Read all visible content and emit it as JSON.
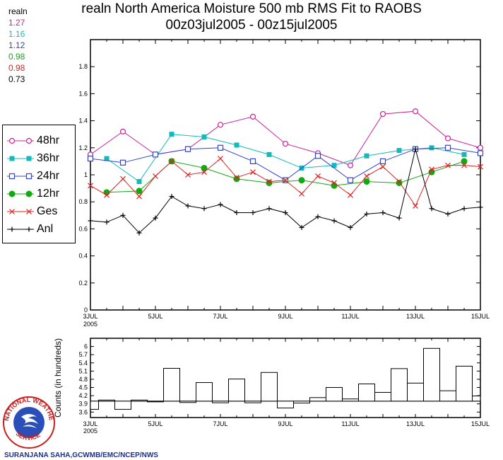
{
  "title_line1": "realn North America Moisture 500 mb RMS Fit to RAOBS",
  "title_line2": "00z03jul2005 - 00z15jul2005",
  "averages": {
    "label": "realn",
    "items": [
      {
        "value": "1.27",
        "color": "#cc2299"
      },
      {
        "value": "1.16",
        "color": "#11bbbb"
      },
      {
        "value": "1.12",
        "color": "#3344cc"
      },
      {
        "value": "0.98",
        "color": "#11aa11"
      },
      {
        "value": "0.98",
        "color": "#dd2222"
      },
      {
        "value": "0.73",
        "color": "#000000"
      }
    ]
  },
  "legend": [
    {
      "label": "48hr",
      "color": "#cc2299",
      "marker": "circle-open"
    },
    {
      "label": "36hr",
      "color": "#11bbbb",
      "marker": "square-filled"
    },
    {
      "label": "24hr",
      "color": "#3344cc",
      "marker": "square-open"
    },
    {
      "label": "12hr",
      "color": "#11aa11",
      "marker": "circle-filled"
    },
    {
      "label": "Ges",
      "color": "#dd2222",
      "marker": "x"
    },
    {
      "label": "Anl",
      "color": "#000000",
      "marker": "plus"
    }
  ],
  "chart_data": [
    {
      "type": "line",
      "x_unit": "day of July 2005",
      "xlim": [
        3,
        15
      ],
      "ylim": [
        0,
        2
      ],
      "y_ticks": [
        0,
        0.2,
        0.4,
        0.6,
        0.8,
        1,
        1.2,
        1.4,
        1.6,
        1.8
      ],
      "x_ticks": [
        {
          "x": 3,
          "label": "3JUL",
          "sub": "2005"
        },
        {
          "x": 5,
          "label": "5JUL"
        },
        {
          "x": 7,
          "label": "7JUL"
        },
        {
          "x": 9,
          "label": "9JUL"
        },
        {
          "x": 11,
          "label": "11JUL"
        },
        {
          "x": 13,
          "label": "13JUL"
        },
        {
          "x": 15,
          "label": "15JUL"
        }
      ],
      "series": [
        {
          "name": "48hr",
          "color": "#cc2299",
          "marker": "circle-open",
          "points": [
            [
              3,
              1.15
            ],
            [
              4,
              1.32
            ],
            [
              5,
              1.15
            ],
            [
              6,
              1.19
            ],
            [
              7,
              1.37
            ],
            [
              8,
              1.43
            ],
            [
              9,
              1.23
            ],
            [
              10,
              1.16
            ],
            [
              11,
              1.07
            ],
            [
              12,
              1.45
            ],
            [
              13,
              1.47
            ],
            [
              14,
              1.27
            ],
            [
              15,
              1.2
            ]
          ]
        },
        {
          "name": "36hr",
          "color": "#11bbbb",
          "marker": "square-filled",
          "points": [
            [
              3.5,
              1.12
            ],
            [
              4.5,
              0.95
            ],
            [
              5.5,
              1.3
            ],
            [
              6.5,
              1.28
            ],
            [
              7.5,
              1.22
            ],
            [
              8.5,
              1.15
            ],
            [
              9.5,
              1.05
            ],
            [
              10.5,
              1.07
            ],
            [
              11.5,
              1.14
            ],
            [
              12.5,
              1.18
            ],
            [
              13.5,
              1.2
            ],
            [
              14.5,
              1.15
            ]
          ]
        },
        {
          "name": "24hr",
          "color": "#3344cc",
          "marker": "square-open",
          "points": [
            [
              3,
              1.12
            ],
            [
              4,
              1.09
            ],
            [
              5,
              1.15
            ],
            [
              6,
              1.19
            ],
            [
              7,
              1.2
            ],
            [
              8,
              1.1
            ],
            [
              9,
              0.96
            ],
            [
              10,
              1.14
            ],
            [
              11,
              0.96
            ],
            [
              12,
              1.1
            ],
            [
              13,
              1.19
            ],
            [
              14,
              1.2
            ],
            [
              15,
              1.16
            ]
          ]
        },
        {
          "name": "12hr",
          "color": "#11aa11",
          "marker": "circle-filled",
          "points": [
            [
              3.5,
              0.87
            ],
            [
              4.5,
              0.88
            ],
            [
              5.5,
              1.1
            ],
            [
              6.5,
              1.05
            ],
            [
              7.5,
              0.97
            ],
            [
              8.5,
              0.94
            ],
            [
              9.5,
              0.96
            ],
            [
              10.5,
              0.92
            ],
            [
              11.5,
              0.95
            ],
            [
              12.5,
              0.94
            ],
            [
              13.5,
              1.02
            ],
            [
              14.5,
              1.1
            ]
          ]
        },
        {
          "name": "Ges",
          "color": "#dd2222",
          "marker": "x",
          "points": [
            [
              3,
              0.92
            ],
            [
              3.5,
              0.85
            ],
            [
              4,
              0.97
            ],
            [
              4.5,
              0.84
            ],
            [
              5,
              0.99
            ],
            [
              5.5,
              1.1
            ],
            [
              6,
              1.0
            ],
            [
              6.5,
              1.02
            ],
            [
              7,
              1.12
            ],
            [
              7.5,
              0.98
            ],
            [
              8,
              1.02
            ],
            [
              8.5,
              0.95
            ],
            [
              9,
              0.96
            ],
            [
              9.5,
              0.86
            ],
            [
              10,
              0.99
            ],
            [
              10.5,
              0.94
            ],
            [
              11,
              0.85
            ],
            [
              11.5,
              0.99
            ],
            [
              12,
              1.06
            ],
            [
              12.5,
              0.95
            ],
            [
              13,
              0.77
            ],
            [
              13.5,
              1.04
            ],
            [
              14,
              1.07
            ],
            [
              14.5,
              1.07
            ],
            [
              15,
              1.06
            ]
          ]
        },
        {
          "name": "Anl",
          "color": "#000000",
          "marker": "plus",
          "points": [
            [
              3,
              0.66
            ],
            [
              3.5,
              0.65
            ],
            [
              4,
              0.7
            ],
            [
              4.5,
              0.57
            ],
            [
              5,
              0.68
            ],
            [
              5.5,
              0.84
            ],
            [
              6,
              0.77
            ],
            [
              6.5,
              0.75
            ],
            [
              7,
              0.78
            ],
            [
              7.5,
              0.72
            ],
            [
              8,
              0.72
            ],
            [
              8.5,
              0.75
            ],
            [
              9,
              0.72
            ],
            [
              9.5,
              0.61
            ],
            [
              10,
              0.69
            ],
            [
              10.5,
              0.66
            ],
            [
              11,
              0.61
            ],
            [
              11.5,
              0.71
            ],
            [
              12,
              0.72
            ],
            [
              12.5,
              0.68
            ],
            [
              13,
              1.19
            ],
            [
              13.5,
              0.75
            ],
            [
              14,
              0.71
            ],
            [
              14.5,
              0.75
            ],
            [
              15,
              0.76
            ]
          ]
        }
      ]
    },
    {
      "type": "bar",
      "ylabel": "Counts (in hundreds)",
      "xlim": [
        3,
        15
      ],
      "ylim": [
        3.4,
        6.3
      ],
      "baseline": 4.0,
      "y_ticks": [
        "3.6",
        "3.9",
        "4.2",
        "4.5",
        "4.8",
        "5.1",
        "5.4",
        "5.7",
        "6"
      ],
      "x_ticks": [
        {
          "x": 3,
          "label": "3JUL",
          "sub": "2005"
        },
        {
          "x": 5,
          "label": "5JUL"
        },
        {
          "x": 7,
          "label": "7JUL"
        },
        {
          "x": 9,
          "label": "9JUL"
        },
        {
          "x": 11,
          "label": "11JUL"
        },
        {
          "x": 13,
          "label": "13JUL"
        },
        {
          "x": 15,
          "label": "15JUL"
        }
      ],
      "bars": [
        {
          "x": 3,
          "value": 3.7
        },
        {
          "x": 3.5,
          "value": 4.04
        },
        {
          "x": 4,
          "value": 3.7
        },
        {
          "x": 4.5,
          "value": 4.04
        },
        {
          "x": 5,
          "value": 3.98
        },
        {
          "x": 5.5,
          "value": 5.2
        },
        {
          "x": 6,
          "value": 3.95
        },
        {
          "x": 6.5,
          "value": 4.68
        },
        {
          "x": 7,
          "value": 3.94
        },
        {
          "x": 7.5,
          "value": 4.81
        },
        {
          "x": 8,
          "value": 3.94
        },
        {
          "x": 8.5,
          "value": 5.05
        },
        {
          "x": 9,
          "value": 3.75
        },
        {
          "x": 9.5,
          "value": 3.93
        },
        {
          "x": 10,
          "value": 4.13
        },
        {
          "x": 10.5,
          "value": 4.5
        },
        {
          "x": 11,
          "value": 4.08
        },
        {
          "x": 11.5,
          "value": 4.63
        },
        {
          "x": 12,
          "value": 4.32
        },
        {
          "x": 12.5,
          "value": 5.19
        },
        {
          "x": 13,
          "value": 4.66
        },
        {
          "x": 13.5,
          "value": 5.93
        },
        {
          "x": 14,
          "value": 4.38
        },
        {
          "x": 14.5,
          "value": 5.28
        },
        {
          "x": 15,
          "value": 4.19
        }
      ]
    }
  ],
  "logo_text": "NATIONAL WEATHER SERVICE",
  "credit": "SURANJANA SAHA,GCWMB/EMC/NCEP/NWS"
}
